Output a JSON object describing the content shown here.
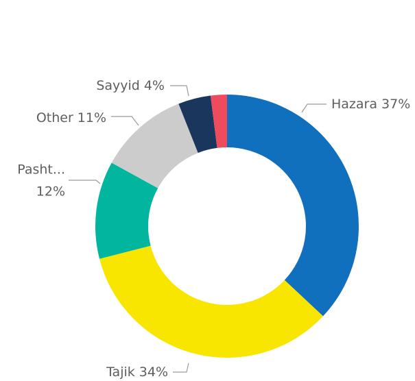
{
  "chart_data": {
    "type": "donut",
    "categories": [
      "Hazara",
      "Tajik",
      "Pasht...",
      "Other",
      "Sayyid",
      null
    ],
    "values": [
      37,
      34,
      12,
      11,
      4,
      2
    ],
    "value_labels": [
      "37%",
      "34%",
      "12%",
      "11%",
      "4%",
      null
    ],
    "colors": [
      "#1170bd",
      "#f8e600",
      "#01b59f",
      "#cccccc",
      "#1b365d",
      "#ee4b5e"
    ]
  }
}
